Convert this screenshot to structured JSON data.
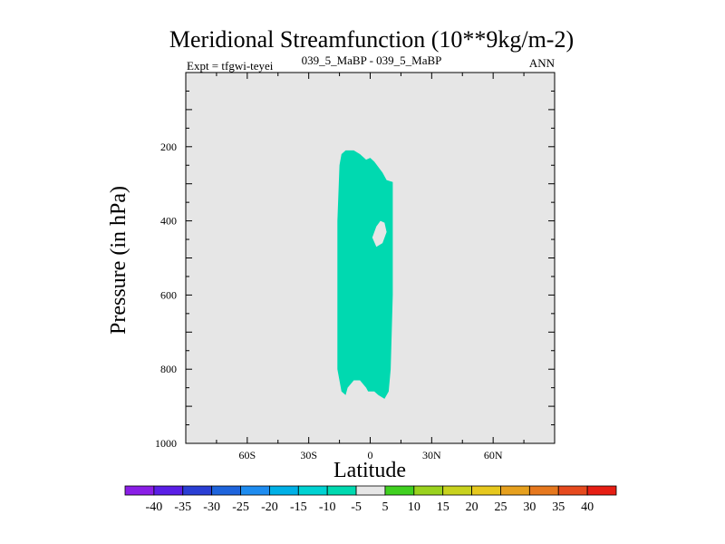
{
  "chart_data": {
    "type": "contour",
    "title": "Meridional Streamfunction (10**9kg/m-2)",
    "subtitle_left": "Expt = tfgwi-teyei",
    "subtitle_center": "039_5_MaBP - 039_5_MaBP",
    "subtitle_right": "ANN",
    "xlabel": "Latitude",
    "ylabel": "Pressure (in hPa)",
    "xlim": [
      -90,
      90
    ],
    "ylim": [
      1000,
      0
    ],
    "x_ticks": [
      {
        "value": -60,
        "label": "60S"
      },
      {
        "value": -30,
        "label": "30S"
      },
      {
        "value": 0,
        "label": "0"
      },
      {
        "value": 30,
        "label": "30N"
      },
      {
        "value": 60,
        "label": "60N"
      }
    ],
    "y_ticks": [
      {
        "value": 200,
        "label": "200"
      },
      {
        "value": 400,
        "label": "400"
      },
      {
        "value": 600,
        "label": "600"
      },
      {
        "value": 800,
        "label": "800"
      },
      {
        "value": 1000,
        "label": "1000"
      }
    ],
    "background_level": "-5 to 5",
    "background_color": "#e6e6e6",
    "shaded_region": {
      "level": "-10 to -5",
      "color": "#00d9b0",
      "outline": [
        [
          -14,
          220
        ],
        [
          -12,
          210
        ],
        [
          -8,
          210
        ],
        [
          -5,
          220
        ],
        [
          -2,
          235
        ],
        [
          0,
          230
        ],
        [
          2,
          240
        ],
        [
          6,
          270
        ],
        [
          8,
          290
        ],
        [
          11,
          295
        ],
        [
          11,
          400
        ],
        [
          11,
          600
        ],
        [
          10,
          800
        ],
        [
          9,
          860
        ],
        [
          7,
          880
        ],
        [
          4,
          870
        ],
        [
          2,
          860
        ],
        [
          -1,
          860
        ],
        [
          -2,
          850
        ],
        [
          -5,
          830
        ],
        [
          -8,
          830
        ],
        [
          -11,
          850
        ],
        [
          -12,
          870
        ],
        [
          -14,
          860
        ],
        [
          -16,
          800
        ],
        [
          -16,
          600
        ],
        [
          -16,
          400
        ],
        [
          -15,
          250
        ]
      ],
      "hole": [
        [
          5,
          400
        ],
        [
          7,
          405
        ],
        [
          8,
          430
        ],
        [
          6,
          460
        ],
        [
          3,
          470
        ],
        [
          1,
          445
        ],
        [
          3,
          415
        ]
      ]
    },
    "colorbar": {
      "labels": [
        "-40",
        "-35",
        "-30",
        "-25",
        "-20",
        "-15",
        "-10",
        "-5",
        "5",
        "10",
        "15",
        "20",
        "25",
        "30",
        "35",
        "40"
      ],
      "colors": [
        "#8a1ee6",
        "#5a1ee6",
        "#2a3ed4",
        "#1e64dc",
        "#1e8cf0",
        "#00b0e6",
        "#00d2d2",
        "#00d9b0",
        "#e6e6e6",
        "#40d020",
        "#9ad21e",
        "#c8d21e",
        "#e6c81e",
        "#e6a01e",
        "#e6781e",
        "#e64a1e",
        "#e61e14"
      ]
    }
  }
}
